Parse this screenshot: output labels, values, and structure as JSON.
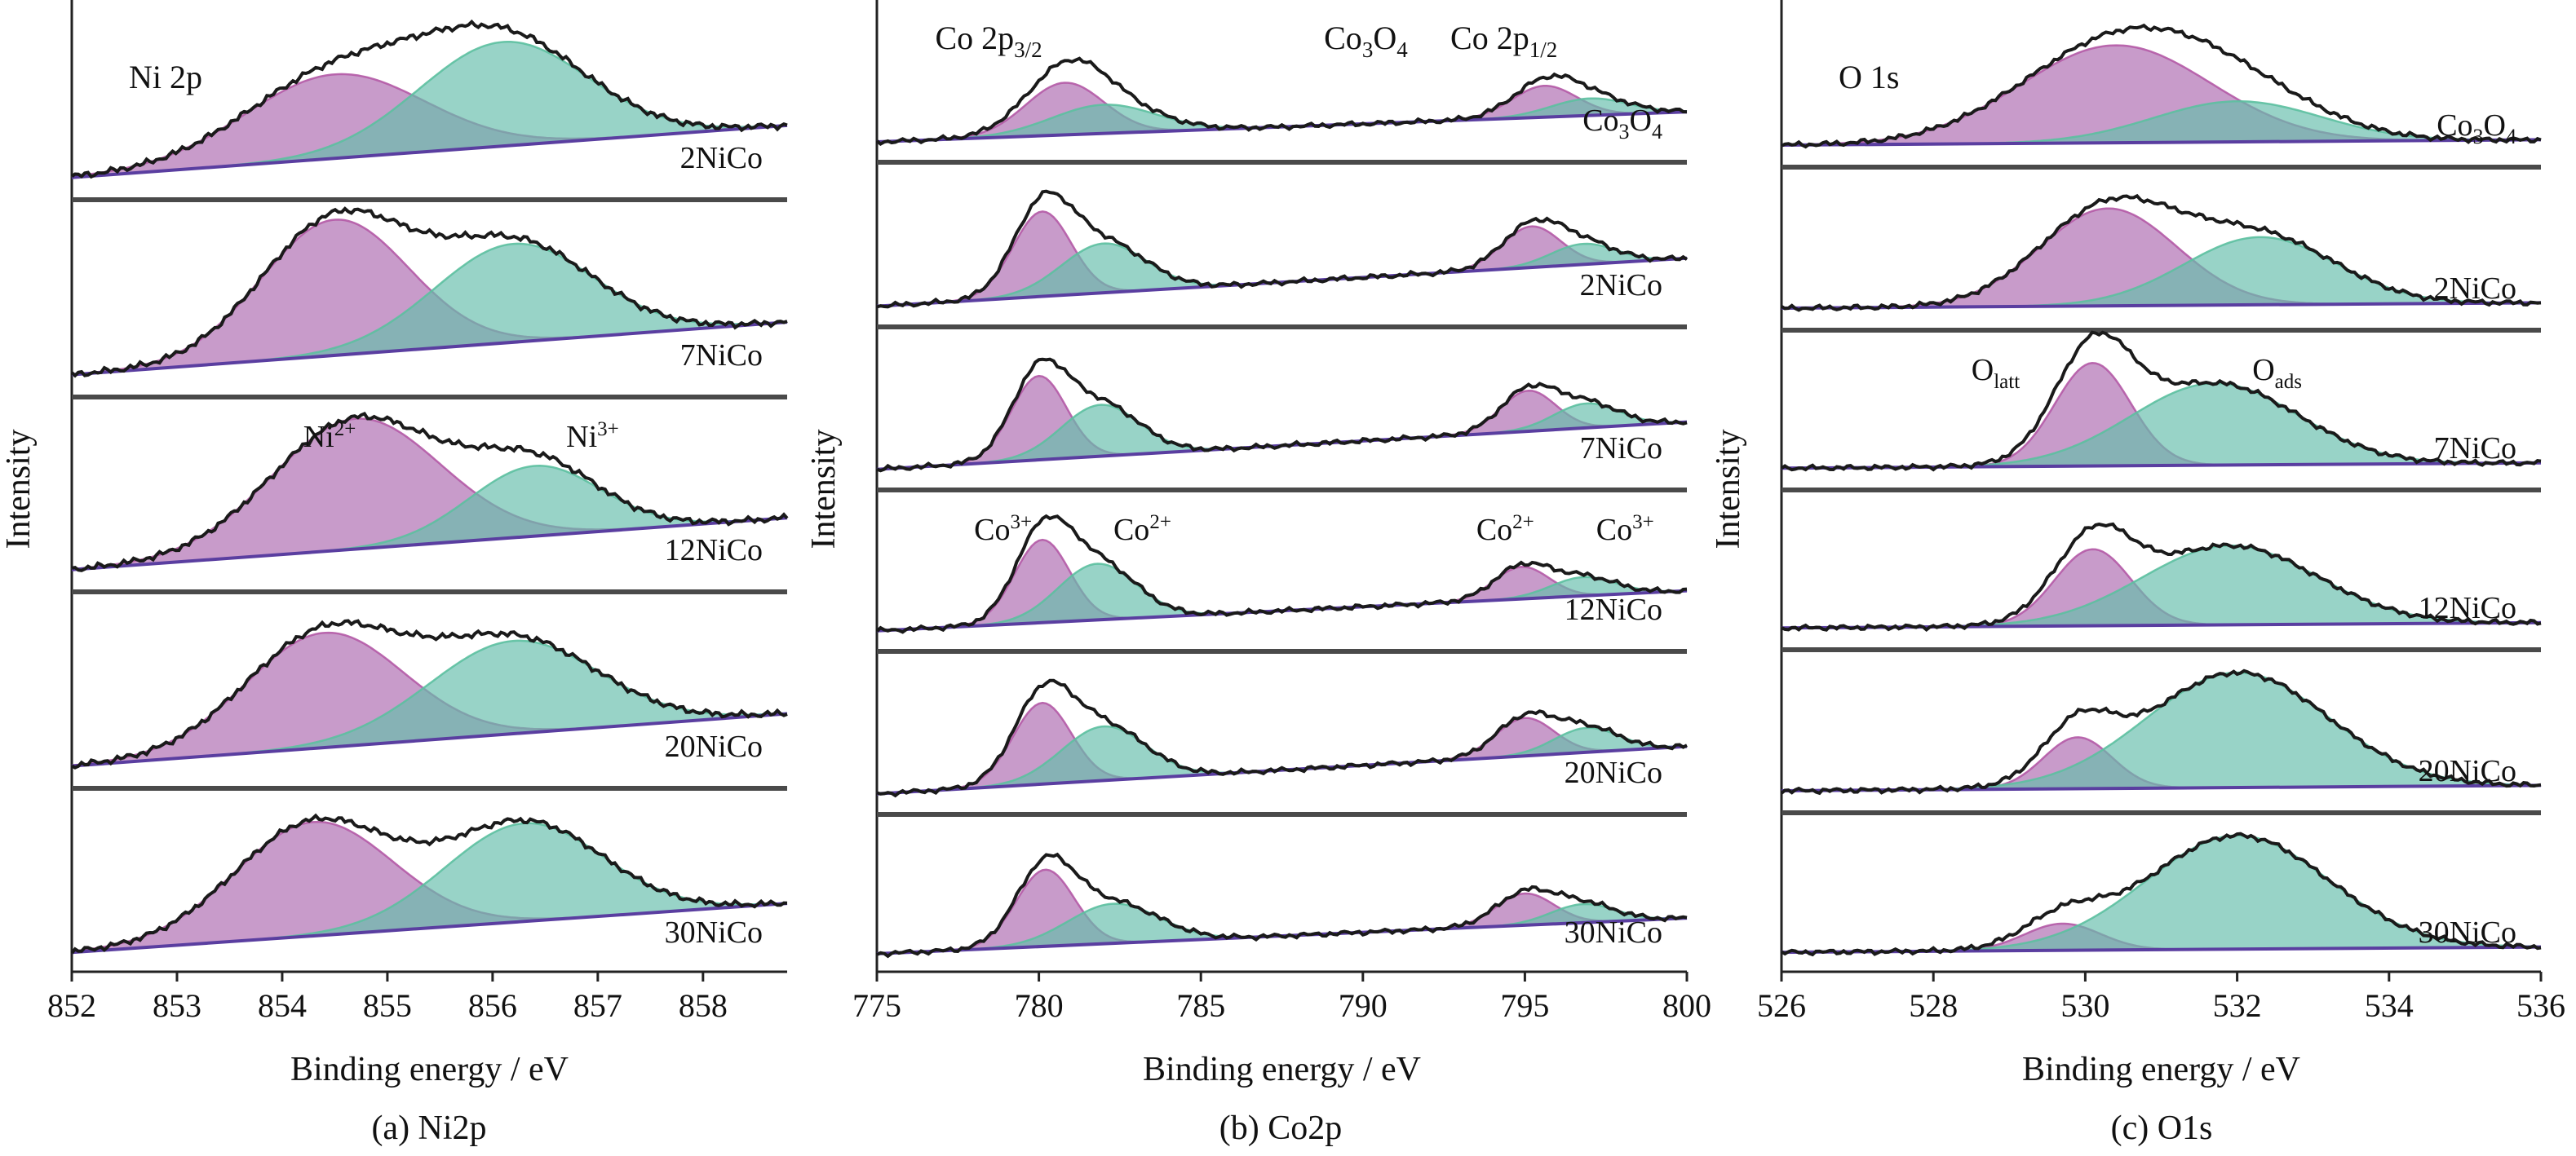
{
  "chart_data": [
    {
      "type": "area",
      "caption": "(a) Ni2p",
      "xlabel": "Binding energy / eV",
      "ylabel": "Intensity",
      "xlim": [
        852,
        858.8
      ],
      "xticks": [
        "852",
        "853",
        "854",
        "855",
        "856",
        "857",
        "858"
      ],
      "xtick_values": [
        852,
        853,
        854,
        855,
        856,
        857,
        858
      ],
      "header_label": "Ni 2p",
      "component_labels": [
        {
          "text": "Ni",
          "sup": "2+",
          "x": 854.2,
          "stack": 2
        },
        {
          "text": "Ni",
          "sup": "3+",
          "x": 856.7,
          "stack": 2
        }
      ],
      "stacks": [
        {
          "name": "2NiCo",
          "baseline": [
            0.05,
            0.36
          ],
          "components": [
            {
              "label": "Ni2+",
              "center": 854.5,
              "width": 0.85,
              "height": 0.5,
              "color": "#b45aa6"
            },
            {
              "label": "Ni3+",
              "center": 856.1,
              "width": 0.8,
              "height": 0.62,
              "color": "#5cc0a0"
            }
          ]
        },
        {
          "name": "7NiCo",
          "baseline": [
            0.05,
            0.36
          ],
          "components": [
            {
              "label": "Ni2+",
              "center": 854.5,
              "width": 0.7,
              "height": 0.8,
              "color": "#b45aa6"
            },
            {
              "label": "Ni3+",
              "center": 856.2,
              "width": 0.75,
              "height": 0.58,
              "color": "#5cc0a0"
            }
          ]
        },
        {
          "name": "12NiCo",
          "baseline": [
            0.05,
            0.36
          ],
          "components": [
            {
              "label": "Ni2+",
              "center": 854.7,
              "width": 0.8,
              "height": 0.78,
              "color": "#b45aa6"
            },
            {
              "label": "Ni3+",
              "center": 856.4,
              "width": 0.62,
              "height": 0.42,
              "color": "#5cc0a0"
            }
          ]
        },
        {
          "name": "20NiCo",
          "baseline": [
            0.05,
            0.36
          ],
          "components": [
            {
              "label": "Ni2+",
              "center": 854.4,
              "width": 0.75,
              "height": 0.68,
              "color": "#b45aa6"
            },
            {
              "label": "Ni3+",
              "center": 856.2,
              "width": 0.8,
              "height": 0.55,
              "color": "#5cc0a0"
            }
          ]
        },
        {
          "name": "30NiCo",
          "baseline": [
            0.05,
            0.36
          ],
          "components": [
            {
              "label": "Ni2+",
              "center": 854.3,
              "width": 0.75,
              "height": 0.72,
              "color": "#b45aa6"
            },
            {
              "label": "Ni3+",
              "center": 856.3,
              "width": 0.75,
              "height": 0.62,
              "color": "#5cc0a0"
            }
          ]
        }
      ]
    },
    {
      "type": "area",
      "caption": "(b) Co2p",
      "xlabel": "Binding energy / eV",
      "ylabel": "Intensity",
      "xlim": [
        775,
        800
      ],
      "xticks": [
        "775",
        "780",
        "785",
        "790",
        "795",
        "800"
      ],
      "xtick_values": [
        775,
        780,
        785,
        790,
        795,
        800
      ],
      "header_labels": [
        {
          "text": "Co 2p",
          "sub": "3/2",
          "x": 776.8
        },
        {
          "text": "Co",
          "sub": "3",
          "tail": "O",
          "sub2": "4",
          "x": 788.8
        },
        {
          "text": "Co 2p",
          "sub": "1/2",
          "x": 792.7
        }
      ],
      "component_labels": [
        {
          "text": "Co",
          "sup": "3+",
          "x": 778.0,
          "stack": 3
        },
        {
          "text": "Co",
          "sup": "2+",
          "x": 782.3,
          "stack": 3
        },
        {
          "text": "Co",
          "sup": "2+",
          "x": 793.5,
          "stack": 3
        },
        {
          "text": "Co",
          "sup": "3+",
          "x": 797.2,
          "stack": 3
        }
      ],
      "stacks": [
        {
          "name": "Co3O4",
          "baseline": [
            0.05,
            0.28
          ],
          "components": [
            {
              "label": "Co3+ 2p3/2",
              "center": 780.8,
              "width": 1.2,
              "height": 0.4,
              "color": "#b45aa6"
            },
            {
              "label": "Co2+ 2p3/2",
              "center": 782.0,
              "width": 1.6,
              "height": 0.22,
              "color": "#5cc0a0"
            },
            {
              "label": "Co3+ 2p1/2",
              "center": 795.6,
              "width": 1.0,
              "height": 0.24,
              "color": "#b45aa6"
            },
            {
              "label": "Co2+ 2p1/2",
              "center": 797.0,
              "width": 1.2,
              "height": 0.13,
              "color": "#5cc0a0"
            }
          ]
        },
        {
          "name": "2NiCo",
          "baseline": [
            0.05,
            0.4
          ],
          "components": [
            {
              "label": "Co3+ 2p3/2",
              "center": 780.1,
              "width": 0.9,
              "height": 0.62,
              "color": "#b45aa6"
            },
            {
              "label": "Co2+ 2p3/2",
              "center": 782.0,
              "width": 1.3,
              "height": 0.36,
              "color": "#5cc0a0"
            },
            {
              "label": "Co3+ 2p1/2",
              "center": 795.2,
              "width": 0.9,
              "height": 0.3,
              "color": "#b45aa6"
            },
            {
              "label": "Co2+ 2p1/2",
              "center": 796.8,
              "width": 1.0,
              "height": 0.15,
              "color": "#5cc0a0"
            }
          ]
        },
        {
          "name": "7NiCo",
          "baseline": [
            0.05,
            0.4
          ],
          "components": [
            {
              "label": "Co3+ 2p3/2",
              "center": 780.0,
              "width": 0.85,
              "height": 0.62,
              "color": "#b45aa6"
            },
            {
              "label": "Co2+ 2p3/2",
              "center": 781.9,
              "width": 1.2,
              "height": 0.38,
              "color": "#5cc0a0"
            },
            {
              "label": "Co3+ 2p1/2",
              "center": 795.1,
              "width": 0.85,
              "height": 0.3,
              "color": "#b45aa6"
            },
            {
              "label": "Co2+ 2p1/2",
              "center": 796.9,
              "width": 1.0,
              "height": 0.18,
              "color": "#5cc0a0"
            }
          ]
        },
        {
          "name": "12NiCo",
          "baseline": [
            0.05,
            0.35
          ],
          "components": [
            {
              "label": "Co3+ 2p3/2",
              "center": 780.1,
              "width": 0.85,
              "height": 0.62,
              "color": "#b45aa6"
            },
            {
              "label": "Co2+ 2p3/2",
              "center": 781.8,
              "width": 1.2,
              "height": 0.42,
              "color": "#5cc0a0"
            },
            {
              "label": "Co3+ 2p1/2",
              "center": 794.9,
              "width": 0.85,
              "height": 0.24,
              "color": "#b45aa6"
            },
            {
              "label": "Co2+ 2p1/2",
              "center": 796.8,
              "width": 1.0,
              "height": 0.14,
              "color": "#5cc0a0"
            }
          ]
        },
        {
          "name": "20NiCo",
          "baseline": [
            0.05,
            0.4
          ],
          "components": [
            {
              "label": "Co3+ 2p3/2",
              "center": 780.1,
              "width": 0.9,
              "height": 0.6,
              "color": "#b45aa6"
            },
            {
              "label": "Co2+ 2p3/2",
              "center": 782.0,
              "width": 1.3,
              "height": 0.4,
              "color": "#5cc0a0"
            },
            {
              "label": "Co3+ 2p1/2",
              "center": 795.0,
              "width": 0.9,
              "height": 0.28,
              "color": "#b45aa6"
            },
            {
              "label": "Co2+ 2p1/2",
              "center": 796.9,
              "width": 1.0,
              "height": 0.18,
              "color": "#5cc0a0"
            }
          ]
        },
        {
          "name": "30NiCo",
          "baseline": [
            0.05,
            0.32
          ],
          "components": [
            {
              "label": "Co3+ 2p3/2",
              "center": 780.2,
              "width": 0.9,
              "height": 0.58,
              "color": "#b45aa6"
            },
            {
              "label": "Co2+ 2p3/2",
              "center": 782.3,
              "width": 1.4,
              "height": 0.3,
              "color": "#5cc0a0"
            },
            {
              "label": "Co3+ 2p1/2",
              "center": 795.0,
              "width": 0.9,
              "height": 0.24,
              "color": "#b45aa6"
            },
            {
              "label": "Co2+ 2p1/2",
              "center": 796.8,
              "width": 1.0,
              "height": 0.14,
              "color": "#5cc0a0"
            }
          ]
        }
      ]
    },
    {
      "type": "area",
      "caption": "(c) O1s",
      "xlabel": "Binding energy / eV",
      "ylabel": "Intensity",
      "xlim": [
        526,
        536
      ],
      "xticks": [
        "526",
        "528",
        "530",
        "532",
        "534",
        "536"
      ],
      "xtick_values": [
        526,
        528,
        530,
        532,
        534,
        536
      ],
      "header_label": "O 1s",
      "component_labels": [
        {
          "text": "O",
          "sub": "latt",
          "x": 528.5,
          "stack": 2
        },
        {
          "text": "O",
          "sub": "ads",
          "x": 532.2,
          "stack": 2
        }
      ],
      "stacks": [
        {
          "name": "Co3O4",
          "baseline": [
            0.06,
            0.1
          ],
          "components": [
            {
              "label": "Olatt",
              "center": 530.4,
              "width": 1.25,
              "height": 0.72,
              "color": "#b45aa6"
            },
            {
              "label": "Oads",
              "center": 532.0,
              "width": 1.1,
              "height": 0.3,
              "color": "#5cc0a0"
            }
          ]
        },
        {
          "name": "2NiCo",
          "baseline": [
            0.06,
            0.1
          ],
          "components": [
            {
              "label": "Olatt",
              "center": 530.3,
              "width": 0.9,
              "height": 0.72,
              "color": "#b45aa6"
            },
            {
              "label": "Oads",
              "center": 532.3,
              "width": 1.0,
              "height": 0.5,
              "color": "#5cc0a0"
            }
          ]
        },
        {
          "name": "7NiCo",
          "baseline": [
            0.06,
            0.1
          ],
          "components": [
            {
              "label": "Olatt",
              "center": 530.1,
              "width": 0.5,
              "height": 0.78,
              "color": "#b45aa6"
            },
            {
              "label": "Oads",
              "center": 531.7,
              "width": 1.1,
              "height": 0.62,
              "color": "#5cc0a0"
            }
          ]
        },
        {
          "name": "12NiCo",
          "baseline": [
            0.06,
            0.1
          ],
          "components": [
            {
              "label": "Olatt",
              "center": 530.1,
              "width": 0.5,
              "height": 0.58,
              "color": "#b45aa6"
            },
            {
              "label": "Oads",
              "center": 531.9,
              "width": 1.15,
              "height": 0.6,
              "color": "#5cc0a0"
            }
          ]
        },
        {
          "name": "20NiCo",
          "baseline": [
            0.06,
            0.1
          ],
          "components": [
            {
              "label": "Olatt",
              "center": 529.9,
              "width": 0.45,
              "height": 0.38,
              "color": "#b45aa6"
            },
            {
              "label": "Oads",
              "center": 532.0,
              "width": 1.2,
              "height": 0.85,
              "color": "#5cc0a0"
            }
          ]
        },
        {
          "name": "30NiCo",
          "baseline": [
            0.06,
            0.1
          ],
          "components": [
            {
              "label": "Olatt",
              "center": 529.7,
              "width": 0.5,
              "height": 0.2,
              "color": "#b45aa6"
            },
            {
              "label": "Oads",
              "center": 532.0,
              "width": 1.2,
              "height": 0.85,
              "color": "#5cc0a0"
            }
          ]
        }
      ]
    }
  ],
  "colors": {
    "magenta_component": "#b45aa6",
    "teal_component": "#5cc0a0",
    "background_component": "#8fb8dc",
    "baseline_line": "#5a3ea0",
    "envelope_line": "#1a1a1a",
    "separator": "#4a4a4a"
  }
}
